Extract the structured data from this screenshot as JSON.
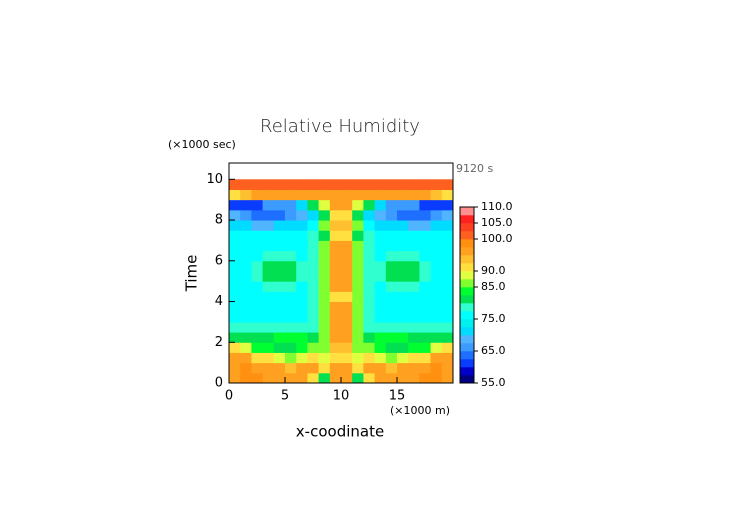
{
  "chart_data": {
    "type": "contour",
    "title": "Relative Humidity",
    "xlabel": "x-coodinate",
    "ylabel": "Time",
    "xunit": "(×1000 m)",
    "yunit": "(×1000 sec)",
    "annotation": "9120 s",
    "xlim": [
      0,
      20
    ],
    "ylim": [
      0,
      10.8
    ],
    "xticks": [
      0,
      5,
      10,
      15
    ],
    "yticks": [
      0,
      2,
      4,
      6,
      8,
      10
    ],
    "x": [
      0.5,
      1.5,
      2.5,
      3.5,
      4.5,
      5.5,
      6.5,
      7.5,
      8.5,
      9.5,
      10.5,
      11.5,
      12.5,
      13.5,
      14.5,
      15.5,
      16.5,
      17.5,
      18.5,
      19.5
    ],
    "y": [
      0.25,
      0.75,
      1.25,
      1.75,
      2.25,
      2.75,
      3.25,
      3.75,
      4.25,
      4.75,
      5.25,
      5.75,
      6.25,
      6.75,
      7.25,
      7.75,
      8.25,
      8.75,
      9.25,
      9.75
    ],
    "z": [
      [
        97,
        99,
        98,
        97,
        97,
        96,
        95,
        90,
        82,
        97,
        97,
        82,
        90,
        95,
        96,
        97,
        97,
        98,
        99,
        97
      ],
      [
        97,
        98,
        97,
        95,
        95,
        93,
        95,
        95,
        90,
        97,
        97,
        90,
        95,
        95,
        93,
        95,
        95,
        97,
        98,
        97
      ],
      [
        97,
        95,
        92,
        90,
        88,
        86,
        88,
        90,
        88,
        92,
        92,
        88,
        90,
        88,
        86,
        88,
        90,
        92,
        95,
        97
      ],
      [
        90,
        88,
        84,
        83,
        82,
        82,
        84,
        85,
        87,
        93,
        93,
        87,
        85,
        84,
        82,
        82,
        83,
        84,
        88,
        90
      ],
      [
        82,
        82,
        82,
        82,
        83,
        83,
        83,
        82,
        87,
        95,
        95,
        87,
        82,
        83,
        83,
        83,
        82,
        82,
        82,
        82
      ],
      [
        78,
        78,
        78,
        78,
        78,
        78,
        78,
        78,
        87,
        95,
        95,
        87,
        78,
        78,
        78,
        78,
        78,
        78,
        78,
        78
      ],
      [
        77,
        77,
        77,
        77,
        77,
        77,
        77,
        78,
        87,
        97,
        97,
        87,
        78,
        77,
        77,
        77,
        77,
        77,
        77,
        77
      ],
      [
        77,
        77,
        77,
        77,
        77,
        77,
        77,
        78,
        87,
        95,
        95,
        87,
        78,
        77,
        77,
        77,
        77,
        77,
        77,
        77
      ],
      [
        77,
        77,
        77,
        77,
        77,
        77,
        77,
        78,
        85,
        92,
        92,
        85,
        78,
        77,
        77,
        77,
        77,
        77,
        77,
        77
      ],
      [
        77,
        77,
        77,
        78,
        78,
        78,
        77,
        78,
        87,
        95,
        95,
        87,
        78,
        77,
        78,
        78,
        78,
        77,
        77,
        77
      ],
      [
        77,
        77,
        78,
        80,
        80,
        80,
        78,
        78,
        87,
        95,
        95,
        87,
        78,
        78,
        80,
        80,
        80,
        78,
        77,
        77
      ],
      [
        77,
        77,
        78,
        80,
        80,
        80,
        78,
        78,
        87,
        97,
        97,
        87,
        78,
        78,
        80,
        80,
        80,
        78,
        77,
        77
      ],
      [
        77,
        77,
        77,
        78,
        78,
        78,
        77,
        78,
        87,
        97,
        97,
        87,
        78,
        77,
        78,
        78,
        78,
        77,
        77,
        77
      ],
      [
        77,
        77,
        77,
        77,
        77,
        77,
        77,
        78,
        85,
        97,
        97,
        85,
        78,
        77,
        77,
        77,
        77,
        77,
        77,
        77
      ],
      [
        77,
        77,
        75,
        75,
        75,
        75,
        77,
        78,
        80,
        92,
        92,
        80,
        78,
        77,
        75,
        75,
        75,
        75,
        77,
        77
      ],
      [
        72,
        70,
        68,
        68,
        70,
        72,
        72,
        75,
        85,
        93,
        93,
        85,
        75,
        72,
        72,
        70,
        68,
        68,
        70,
        72
      ],
      [
        68,
        65,
        63,
        63,
        63,
        65,
        68,
        72,
        80,
        92,
        92,
        80,
        72,
        68,
        65,
        63,
        63,
        63,
        65,
        68
      ],
      [
        62,
        60,
        62,
        65,
        65,
        67,
        72,
        80,
        88,
        95,
        95,
        88,
        80,
        72,
        67,
        65,
        65,
        62,
        60,
        62
      ],
      [
        92,
        94,
        96,
        97,
        97,
        97,
        97,
        97,
        97,
        97,
        97,
        97,
        97,
        97,
        97,
        97,
        97,
        96,
        94,
        92
      ],
      [
        102,
        102,
        102,
        102,
        102,
        102,
        102,
        102,
        102,
        102,
        102,
        102,
        102,
        102,
        102,
        102,
        102,
        102,
        102,
        102
      ]
    ],
    "levels": [
      55,
      57.5,
      60,
      62.5,
      65,
      67.5,
      70,
      72.5,
      75,
      77.5,
      80,
      82.5,
      85,
      87.5,
      90,
      92.5,
      95,
      97.5,
      100,
      102.5,
      105,
      107.5,
      110
    ],
    "colors": [
      "#000080",
      "#0000c8",
      "#0a3cff",
      "#1e6eff",
      "#3c9bff",
      "#50b4ff",
      "#00dcff",
      "#00f0f0",
      "#00ffff",
      "#30ffd0",
      "#00e050",
      "#00ff30",
      "#80ff30",
      "#e0ff40",
      "#ffe040",
      "#ffc030",
      "#ffa020",
      "#ff9010",
      "#ff6020",
      "#ff4020",
      "#ff2020",
      "#ff9090"
    ],
    "cbticks": [
      {
        "value": 110,
        "label": "110.0"
      },
      {
        "value": 105,
        "label": "105.0"
      },
      {
        "value": 100,
        "label": "100.0"
      },
      {
        "value": 90,
        "label": "90.0"
      },
      {
        "value": 85,
        "label": "85.0"
      },
      {
        "value": 75,
        "label": "75.0"
      },
      {
        "value": 65,
        "label": "65.0"
      },
      {
        "value": 55,
        "label": "55.0"
      }
    ]
  }
}
